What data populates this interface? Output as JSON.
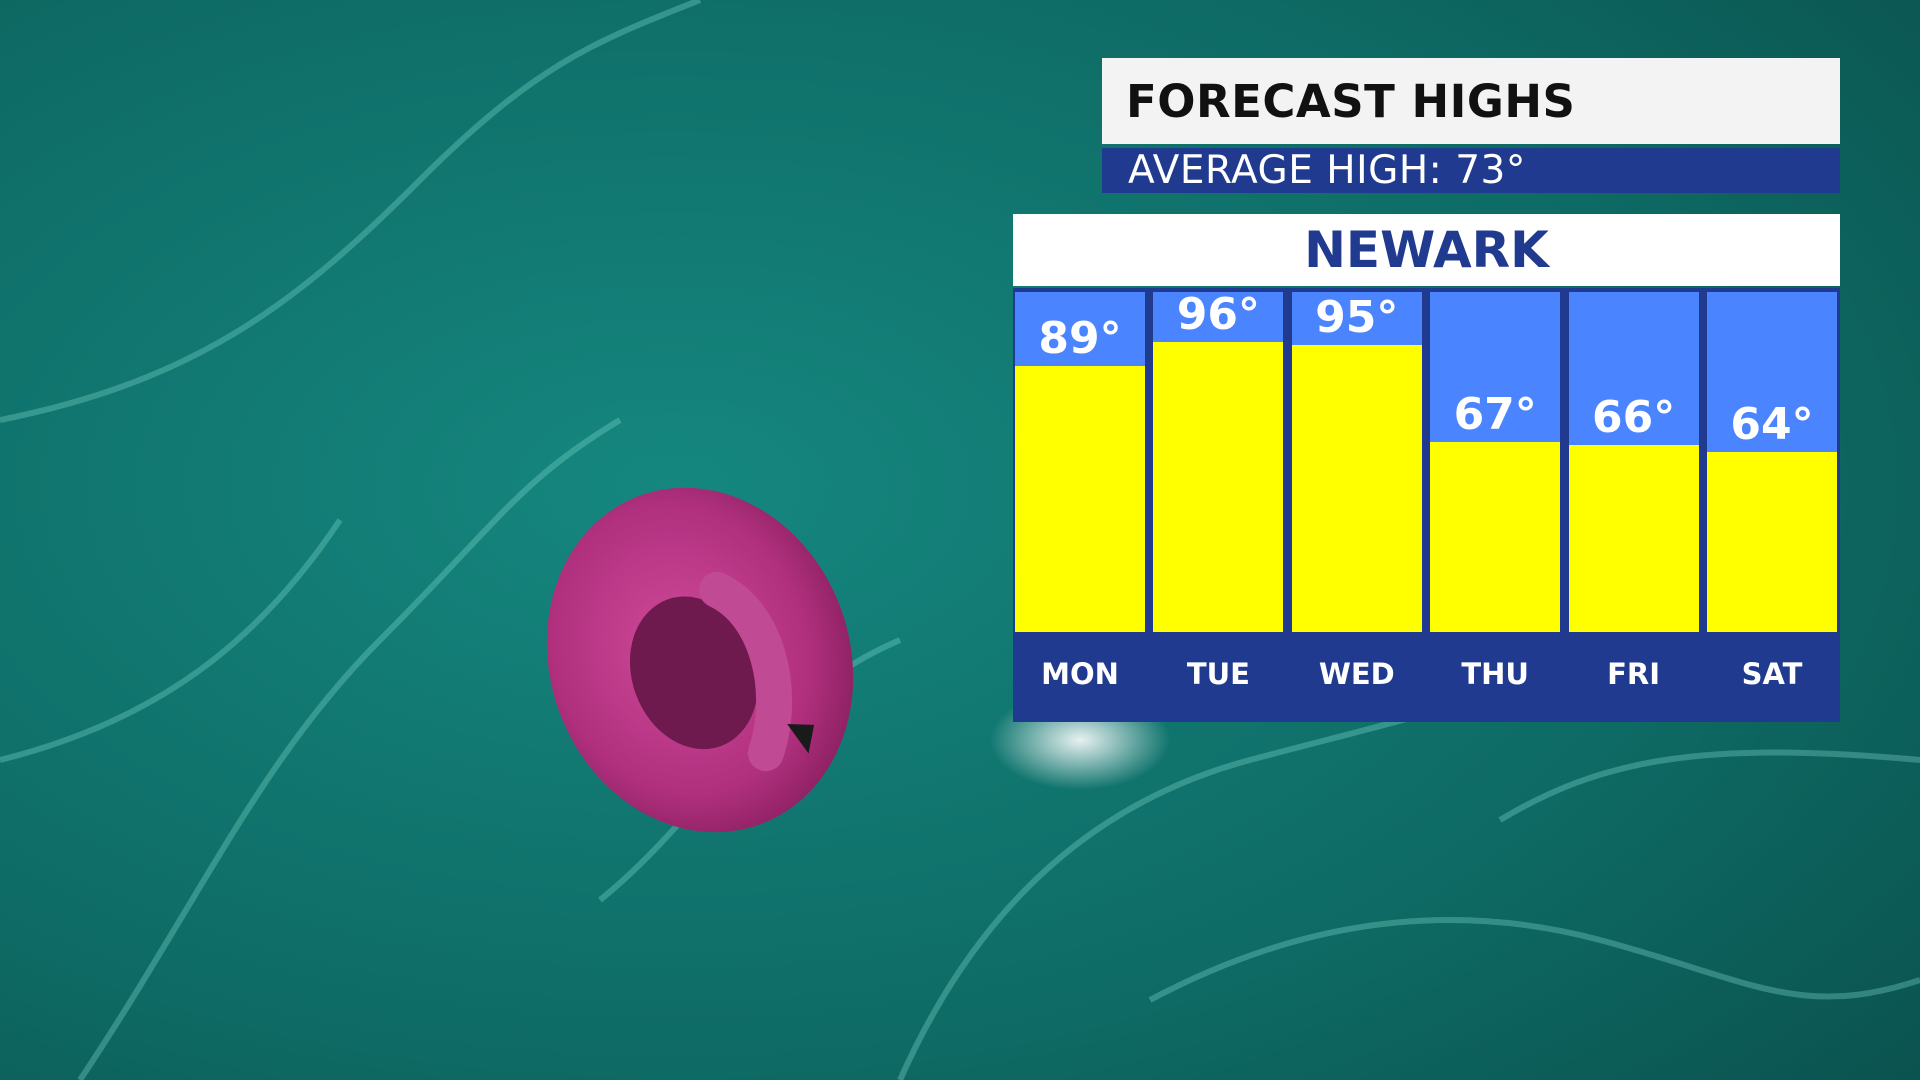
{
  "header": {
    "title": "FORECAST HIGHS",
    "average_label": "AVERAGE HIGH:",
    "average_value": "73°"
  },
  "city": "NEWARK",
  "colors": {
    "bar": "#ffff00",
    "column_bg": "#4a84ff",
    "frame": "#1f3a8f"
  },
  "chart_data": {
    "type": "bar",
    "title": "FORECAST HIGHS",
    "categories": [
      "MON",
      "TUE",
      "WED",
      "THU",
      "FRI",
      "SAT"
    ],
    "values": [
      89,
      96,
      95,
      67,
      66,
      64
    ],
    "value_labels": [
      "89°",
      "96°",
      "95°",
      "67°",
      "66°",
      "64°"
    ],
    "ylim": [
      0,
      130
    ],
    "grid": false
  }
}
